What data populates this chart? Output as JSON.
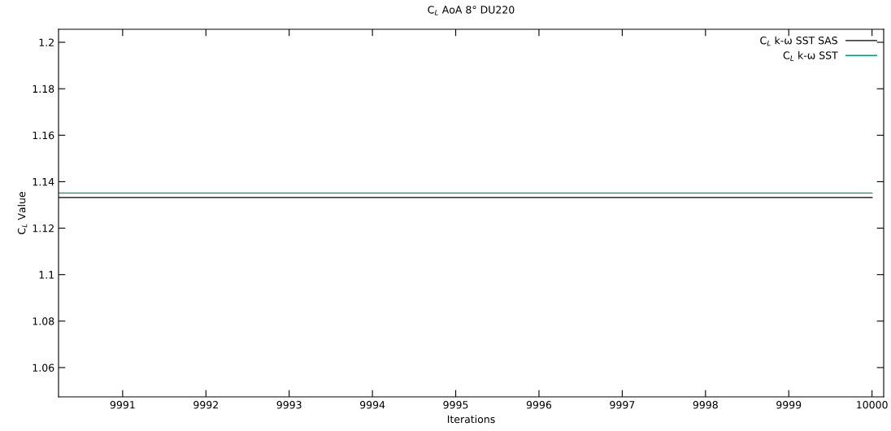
{
  "chart_data": {
    "type": "line",
    "title": "C$_{L}$ AoA 8° DU220",
    "xlabel": "Iterations",
    "ylabel": "C$_{L}$ Value",
    "x": [
      9990.23,
      10000
    ],
    "series": [
      {
        "name": "C$_{L}$ k-ω SST SAS",
        "color": "#000000",
        "values": [
          1.1332,
          1.1332
        ]
      },
      {
        "name": "C$_{L}$ k-ω SST",
        "color": "#009e73",
        "values": [
          1.1351,
          1.1351
        ]
      }
    ],
    "xlim": [
      9990.23,
      10000.14
    ],
    "ylim": [
      1.0474,
      1.2056
    ],
    "xticks": [
      9991,
      9992,
      9993,
      9994,
      9995,
      9996,
      9997,
      9998,
      9999,
      10000
    ],
    "yticks": [
      1.06,
      1.08,
      1.1,
      1.12,
      1.14,
      1.16,
      1.18,
      1.2
    ],
    "legend": "top right",
    "grid": false,
    "marker": "none",
    "line_style": "solid"
  }
}
